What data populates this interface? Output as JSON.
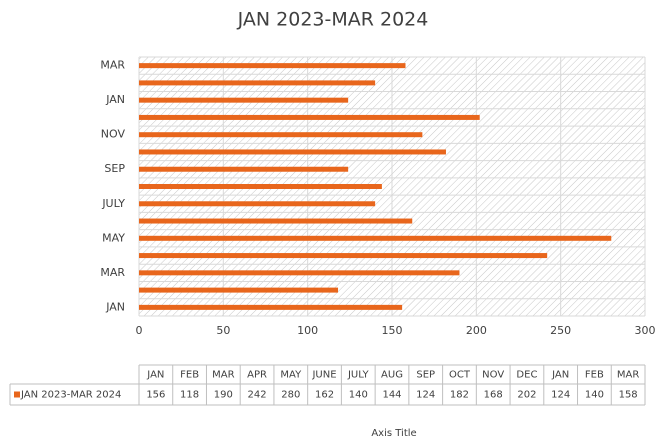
{
  "chart_data": {
    "type": "bar",
    "orientation": "horizontal",
    "title": "JAN 2023-MAR 2024",
    "categories": [
      "JAN",
      "FEB",
      "MAR",
      "APR",
      "MAY",
      "JUNE",
      "JULY",
      "AUG",
      "SEP",
      "OCT",
      "NOV",
      "DEC",
      "JAN",
      "FEB",
      "MAR"
    ],
    "series": [
      {
        "name": "JAN 2023-MAR 2024",
        "color": "#e8661c",
        "values": [
          156,
          118,
          190,
          242,
          280,
          162,
          140,
          144,
          124,
          182,
          168,
          202,
          124,
          140,
          158
        ]
      }
    ],
    "xlim": [
      0,
      300
    ],
    "xticks": [
      0,
      50,
      100,
      150,
      200,
      250,
      300
    ],
    "grid": true,
    "xlabel": "Axis Title",
    "data_table": true
  }
}
